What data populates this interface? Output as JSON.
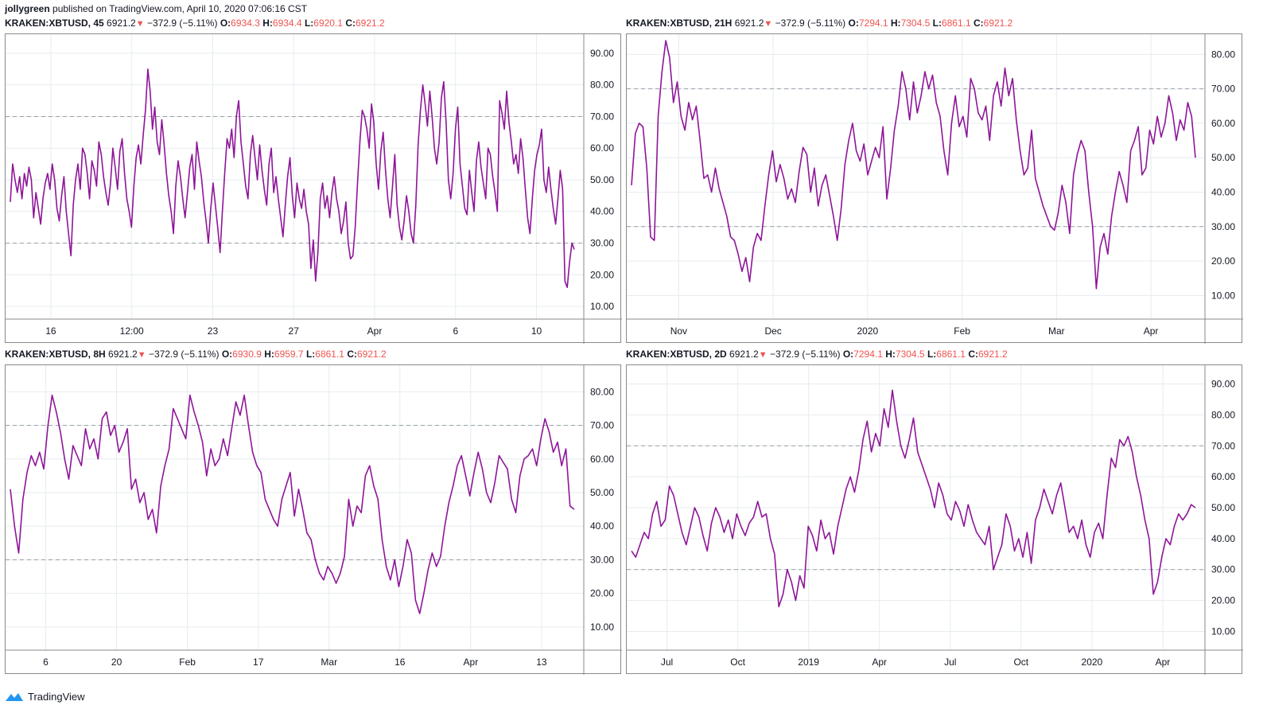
{
  "header": {
    "author": "jollygreen",
    "published": "published on TradingView.com, April 10, 2020 07:06:16 CST"
  },
  "footer": {
    "brand": "TradingView",
    "logo_icon": "tradingview-logo-icon"
  },
  "colors": {
    "line": "#8E1599",
    "grid": "#e6ecef",
    "level": "#9aa0a6",
    "down": "#ef5350"
  },
  "panels": [
    {
      "symbol": "KRAKEN:XBTUSD, 45",
      "last": "6921.2",
      "change": "−372.9 (−5.11%)",
      "o": "6934.3",
      "h": "6934.4",
      "l": "6920.1",
      "c": "6921.2"
    },
    {
      "symbol": "KRAKEN:XBTUSD, 21H",
      "last": "6921.2",
      "change": "−372.9 (−5.11%)",
      "o": "7294.1",
      "h": "7304.5",
      "l": "6861.1",
      "c": "6921.2"
    },
    {
      "symbol": "KRAKEN:XBTUSD, 8H",
      "last": "6921.2",
      "change": "−372.9 (−5.11%)",
      "o": "6930.9",
      "h": "6959.7",
      "l": "6861.1",
      "c": "6921.2"
    },
    {
      "symbol": "KRAKEN:XBTUSD, 2D",
      "last": "6921.2",
      "change": "−372.9 (−5.11%)",
      "o": "7294.1",
      "h": "7304.5",
      "l": "6861.1",
      "c": "6921.2"
    }
  ],
  "chart_data": [
    {
      "type": "line",
      "series": [
        {
          "values": [
            43,
            55,
            50,
            46,
            51,
            44,
            52,
            48,
            54,
            50,
            38,
            46,
            41,
            36,
            44,
            49,
            52,
            47,
            55,
            50,
            41,
            37,
            45,
            51,
            40,
            33,
            26,
            42,
            50,
            55,
            47,
            60,
            58,
            52,
            44,
            56,
            53,
            48,
            62,
            58,
            51,
            46,
            42,
            49,
            60,
            54,
            47,
            59,
            63,
            52,
            44,
            40,
            35,
            48,
            57,
            61,
            55,
            64,
            72,
            85,
            78,
            66,
            73,
            62,
            58,
            69,
            61,
            52,
            45,
            40,
            33,
            48,
            56,
            51,
            44,
            38,
            46,
            54,
            58,
            47,
            62,
            56,
            51,
            43,
            37,
            30,
            41,
            49,
            42,
            35,
            27,
            40,
            52,
            63,
            60,
            66,
            57,
            70,
            75,
            62,
            55,
            48,
            44,
            58,
            64,
            57,
            50,
            61,
            53,
            47,
            42,
            55,
            60,
            46,
            51,
            44,
            38,
            32,
            42,
            51,
            57,
            45,
            38,
            49,
            44,
            41,
            47,
            40,
            36,
            22,
            31,
            18,
            27,
            44,
            49,
            41,
            45,
            38,
            46,
            51,
            44,
            40,
            33,
            37,
            43,
            30,
            25,
            26,
            35,
            49,
            62,
            72,
            70,
            66,
            60,
            74,
            68,
            55,
            47,
            59,
            65,
            53,
            44,
            38,
            48,
            58,
            42,
            35,
            31,
            37,
            45,
            40,
            33,
            30,
            42,
            61,
            72,
            80,
            74,
            67,
            78,
            70,
            60,
            55,
            62,
            76,
            81,
            68,
            50,
            44,
            52,
            66,
            73,
            55,
            48,
            41,
            39,
            53,
            46,
            40,
            56,
            62,
            54,
            49,
            44,
            60,
            58,
            51,
            46,
            40,
            75,
            71,
            66,
            78,
            68,
            62,
            55,
            58,
            52,
            63,
            57,
            47,
            38,
            33,
            44,
            53,
            58,
            61,
            66,
            50,
            46,
            54,
            47,
            41,
            36,
            44,
            53,
            47,
            18,
            16,
            24,
            30,
            28
          ]
        }
      ],
      "y_ticks": [
        "90.00",
        "80.00",
        "70.00",
        "60.00",
        "50.00",
        "40.00",
        "30.00",
        "20.00",
        "10.00"
      ],
      "x_ticks": [
        "16",
        "12:00",
        "23",
        "27",
        "Apr",
        "6",
        "10"
      ],
      "ylim": [
        8,
        94
      ],
      "levels": [
        70,
        30
      ]
    },
    {
      "type": "line",
      "series": [
        {
          "values": [
            42,
            57,
            60,
            59,
            47,
            27,
            26,
            62,
            75,
            84,
            79,
            66,
            72,
            62,
            58,
            66,
            61,
            65,
            55,
            44,
            45,
            40,
            47,
            41,
            37,
            33,
            27,
            26,
            22,
            17,
            21,
            14,
            24,
            28,
            26,
            36,
            45,
            52,
            43,
            48,
            44,
            38,
            41,
            37,
            46,
            53,
            51,
            40,
            47,
            36,
            42,
            45,
            39,
            33,
            26,
            35,
            48,
            55,
            60,
            52,
            49,
            54,
            45,
            49,
            53,
            50,
            59,
            38,
            47,
            58,
            65,
            75,
            70,
            61,
            72,
            63,
            68,
            75,
            70,
            74,
            66,
            62,
            52,
            45,
            60,
            68,
            59,
            62,
            56,
            73,
            70,
            63,
            61,
            65,
            55,
            68,
            72,
            65,
            76,
            68,
            73,
            61,
            52,
            45,
            47,
            58,
            44,
            40,
            36,
            33,
            30,
            29,
            34,
            42,
            37,
            28,
            45,
            51,
            55,
            52,
            40,
            30,
            12,
            24,
            28,
            22,
            33,
            40,
            46,
            42,
            37,
            52,
            55,
            59,
            45,
            47,
            58,
            54,
            62,
            56,
            60,
            68,
            63,
            55,
            61,
            58,
            66,
            62,
            50
          ]
        }
      ],
      "y_ticks": [
        "80.00",
        "70.00",
        "60.00",
        "50.00",
        "40.00",
        "30.00",
        "20.00",
        "10.00"
      ],
      "x_ticks": [
        "Nov",
        "Dec",
        "2020",
        "Feb",
        "Mar",
        "Apr"
      ],
      "ylim": [
        5,
        84
      ],
      "levels": [
        70,
        30
      ]
    },
    {
      "type": "line",
      "series": [
        {
          "values": [
            51,
            40,
            32,
            48,
            56,
            61,
            58,
            62,
            57,
            70,
            79,
            74,
            68,
            60,
            54,
            64,
            61,
            58,
            69,
            63,
            66,
            60,
            72,
            74,
            67,
            70,
            62,
            65,
            69,
            51,
            54,
            47,
            50,
            42,
            45,
            38,
            52,
            58,
            63,
            75,
            72,
            69,
            66,
            79,
            74,
            70,
            65,
            55,
            63,
            58,
            60,
            66,
            61,
            69,
            77,
            73,
            79,
            70,
            62,
            58,
            56,
            48,
            45,
            42,
            40,
            48,
            52,
            56,
            43,
            51,
            45,
            38,
            36,
            30,
            26,
            24,
            28,
            26,
            23,
            26,
            31,
            48,
            40,
            46,
            44,
            55,
            58,
            52,
            48,
            36,
            28,
            24,
            30,
            22,
            28,
            36,
            32,
            18,
            14,
            20,
            27,
            32,
            28,
            31,
            40,
            47,
            52,
            58,
            61,
            55,
            49,
            56,
            62,
            57,
            50,
            47,
            53,
            61,
            59,
            57,
            48,
            44,
            55,
            60,
            61,
            63,
            58,
            66,
            72,
            68,
            62,
            65,
            58,
            63,
            46,
            45
          ]
        }
      ],
      "y_ticks": [
        "80.00",
        "70.00",
        "60.00",
        "50.00",
        "40.00",
        "30.00",
        "20.00",
        "10.00"
      ],
      "x_ticks": [
        "6",
        "20",
        "Feb",
        "17",
        "Mar",
        "16",
        "Apr",
        "13"
      ],
      "ylim": [
        5,
        86
      ],
      "levels": [
        70,
        30
      ]
    },
    {
      "type": "line",
      "series": [
        {
          "values": [
            36,
            34,
            38,
            42,
            40,
            48,
            52,
            44,
            46,
            57,
            54,
            48,
            42,
            38,
            44,
            50,
            47,
            41,
            36,
            45,
            50,
            47,
            42,
            46,
            40,
            48,
            44,
            41,
            45,
            47,
            52,
            47,
            48,
            40,
            35,
            18,
            22,
            30,
            26,
            20,
            28,
            24,
            44,
            41,
            36,
            46,
            40,
            42,
            35,
            44,
            50,
            56,
            60,
            55,
            62,
            72,
            78,
            68,
            74,
            70,
            82,
            76,
            88,
            78,
            70,
            66,
            72,
            79,
            68,
            64,
            60,
            56,
            50,
            58,
            54,
            48,
            46,
            52,
            49,
            44,
            51,
            46,
            42,
            40,
            38,
            44,
            30,
            34,
            38,
            48,
            44,
            36,
            40,
            34,
            42,
            32,
            46,
            50,
            56,
            52,
            48,
            54,
            58,
            50,
            42,
            44,
            40,
            46,
            38,
            34,
            42,
            45,
            40,
            54,
            66,
            63,
            72,
            70,
            73,
            68,
            60,
            54,
            46,
            40,
            22,
            26,
            34,
            40,
            38,
            44,
            48,
            46,
            48,
            51,
            50
          ]
        }
      ],
      "y_ticks": [
        "90.00",
        "80.00",
        "70.00",
        "60.00",
        "50.00",
        "40.00",
        "30.00",
        "20.00",
        "10.00"
      ],
      "x_ticks": [
        "Jul",
        "Oct",
        "2019",
        "Apr",
        "Jul",
        "Oct",
        "2020",
        "Apr"
      ],
      "ylim": [
        6,
        94
      ],
      "levels": [
        70,
        30
      ]
    }
  ]
}
